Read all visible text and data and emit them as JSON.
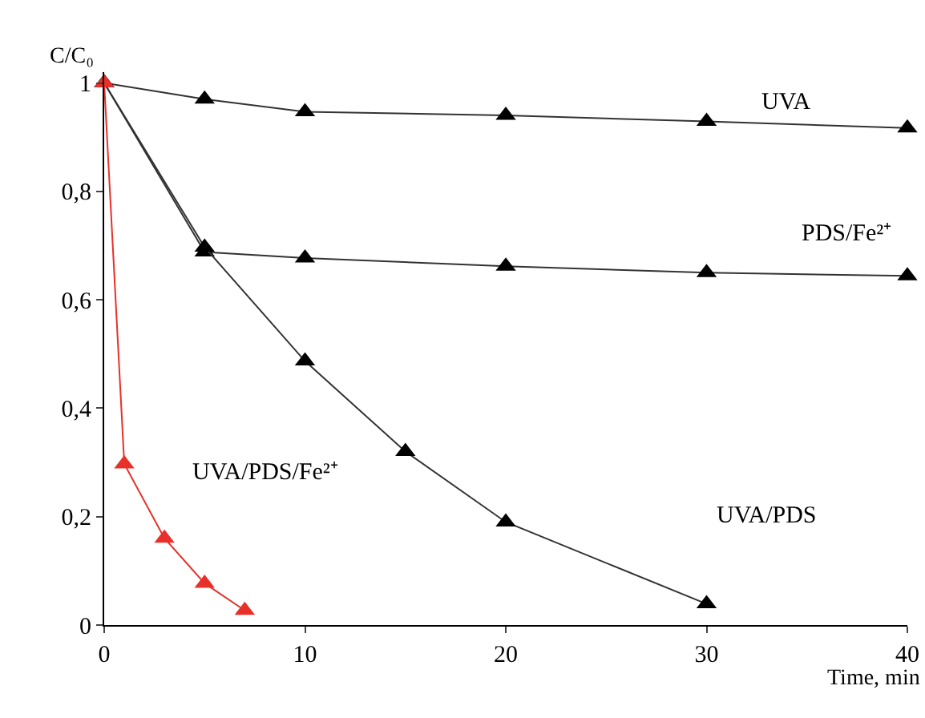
{
  "chart_data": {
    "type": "line",
    "xlabel": "Time, min",
    "ylabel": "C/C₀",
    "xlim": [
      0,
      40
    ],
    "xticks": [
      0,
      10,
      20,
      30,
      40
    ],
    "ylim": [
      0,
      1.02
    ],
    "yticks": [
      {
        "value": 0,
        "label": "0"
      },
      {
        "value": 0.2,
        "label": "0,2"
      },
      {
        "value": 0.4,
        "label": "0,4"
      },
      {
        "value": 0.6,
        "label": "0,6"
      },
      {
        "value": 0.8,
        "label": "0,8"
      },
      {
        "value": 1,
        "label": "1"
      }
    ],
    "grid": false,
    "legend": false,
    "marker": "triangle",
    "line_style": "solid",
    "series": [
      {
        "name": "UVA",
        "color": "#000000",
        "x": [
          0,
          5,
          10,
          20,
          30,
          40
        ],
        "values": [
          1,
          0.97,
          0.947,
          0.94,
          0.929,
          0.917
        ]
      },
      {
        "name": "PDS/Fe²⁺",
        "color": "#000000",
        "x": [
          0,
          5,
          10,
          20,
          30,
          40
        ],
        "values": [
          1,
          0.688,
          0.677,
          0.662,
          0.65,
          0.644
        ]
      },
      {
        "name": "UVA/PDS",
        "color": "#000000",
        "x": [
          0,
          5,
          10,
          15,
          20,
          30
        ],
        "values": [
          1,
          0.697,
          0.487,
          0.32,
          0.19,
          0.039
        ]
      },
      {
        "name": "UVA/PDS/Fe²⁺",
        "color": "#e8302a",
        "x": [
          0,
          1,
          3,
          5,
          7
        ],
        "values": [
          1,
          0.297,
          0.16,
          0.077,
          0.027
        ]
      }
    ]
  }
}
